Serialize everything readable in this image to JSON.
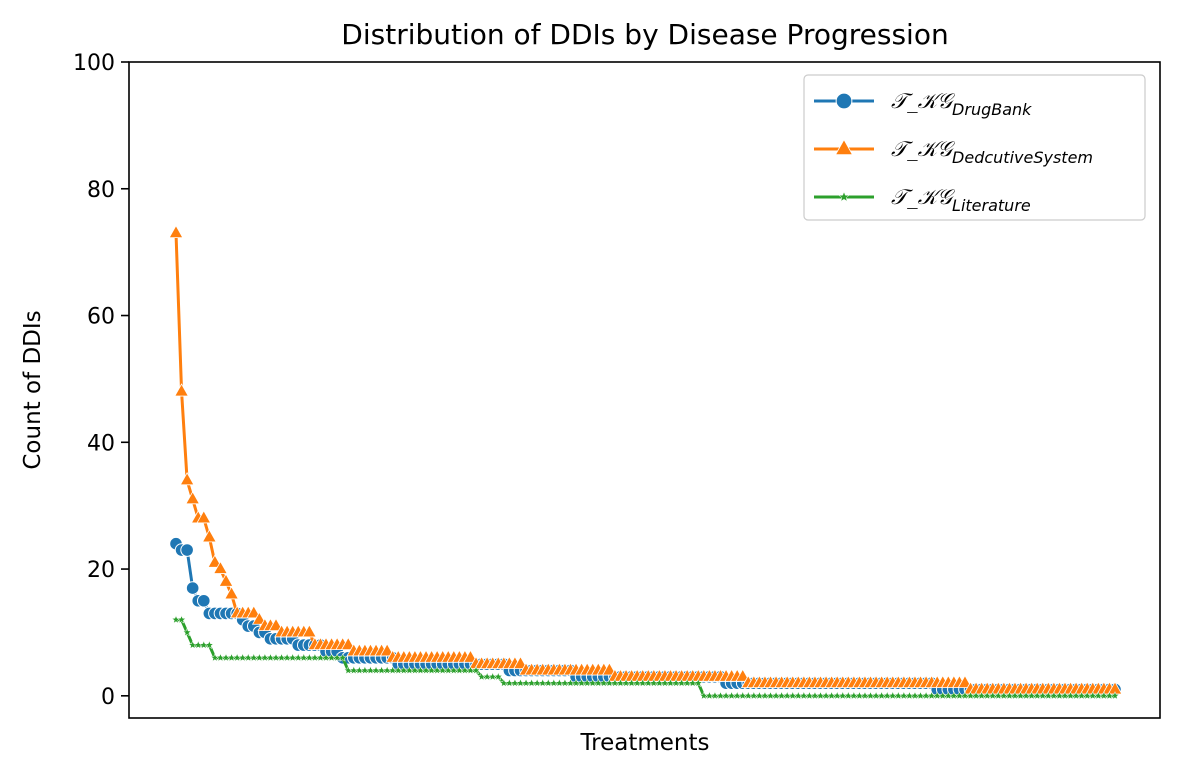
{
  "chart_data": {
    "type": "line",
    "title": "Distribution of DDIs by Disease Progression",
    "xlabel": "Treatments",
    "ylabel": "Count of DDIs",
    "ylim": [
      -3.5,
      100
    ],
    "yticks": [
      0,
      20,
      40,
      60,
      80,
      100
    ],
    "xticks_visible": false,
    "grid": false,
    "legend_position": "top-right",
    "n_points": 170,
    "series": [
      {
        "name": "𝒯_𝒦𝒢",
        "name_subscript": "DrugBank",
        "color": "#1f77b4",
        "marker": "circle",
        "runs": [
          [
            24,
            1
          ],
          [
            23,
            2
          ],
          [
            17,
            1
          ],
          [
            15,
            2
          ],
          [
            13,
            6
          ],
          [
            12,
            1
          ],
          [
            11,
            2
          ],
          [
            10,
            2
          ],
          [
            9,
            5
          ],
          [
            8,
            5
          ],
          [
            7,
            3
          ],
          [
            6,
            10
          ],
          [
            5,
            20
          ],
          [
            4,
            12
          ],
          [
            3,
            27
          ],
          [
            2,
            38
          ],
          [
            1,
            33
          ]
        ]
      },
      {
        "name": "𝒯_𝒦𝒢",
        "name_subscript": "DedcutiveSystem",
        "color": "#ff7f0e",
        "marker": "triangle",
        "runs": [
          [
            73,
            1
          ],
          [
            48,
            1
          ],
          [
            34,
            1
          ],
          [
            31,
            1
          ],
          [
            28,
            2
          ],
          [
            25,
            1
          ],
          [
            21,
            1
          ],
          [
            20,
            1
          ],
          [
            18,
            1
          ],
          [
            16,
            1
          ],
          [
            13,
            4
          ],
          [
            12,
            1
          ],
          [
            11,
            3
          ],
          [
            10,
            6
          ],
          [
            8,
            7
          ],
          [
            7,
            7
          ],
          [
            6,
            15
          ],
          [
            5,
            9
          ],
          [
            4,
            16
          ],
          [
            3,
            24
          ],
          [
            2,
            40
          ],
          [
            1,
            27
          ]
        ]
      },
      {
        "name": "𝒯_𝒦𝒢",
        "name_subscript": "Literature",
        "color": "#2ca02c",
        "marker": "star",
        "runs": [
          [
            12,
            2
          ],
          [
            10,
            1
          ],
          [
            8,
            4
          ],
          [
            6,
            24
          ],
          [
            4,
            24
          ],
          [
            3,
            4
          ],
          [
            2,
            36
          ],
          [
            0,
            75
          ]
        ]
      }
    ]
  }
}
